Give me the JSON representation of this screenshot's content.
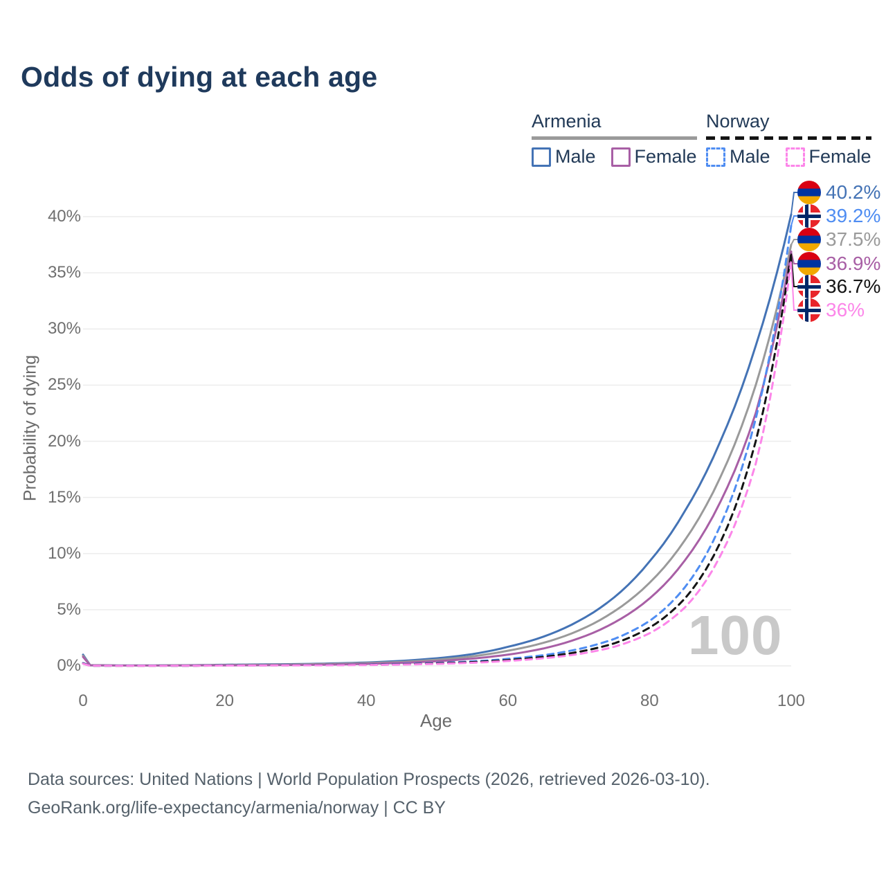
{
  "title": "Odds of dying at each age",
  "watermark": "100",
  "legend": {
    "armenia_label": "Armenia",
    "norway_label": "Norway",
    "male_label": "Male",
    "female_label": "Female"
  },
  "footer": {
    "line1": "Data sources: United Nations | World Population Prospects (2026, retrieved 2026-03-10).",
    "line2": "GeoRank.org/life-expectancy/armenia/norway | CC BY"
  },
  "colors": {
    "title_text": "#1f3a5c",
    "legend_text": "#223a57",
    "armenia_underline": "#9a9a9a",
    "norway_underline": "#141414",
    "grid": "#ececec",
    "axis_text": "#6f6f6f",
    "watermark": "#c9c9c9",
    "armenia_flag": [
      "#D90012",
      "#0033A0",
      "#F2A800"
    ],
    "norway_flag": [
      "#e8252a",
      "#ffffff",
      "#002868"
    ]
  },
  "chart_data": {
    "type": "line",
    "title": "Odds of dying at each age",
    "xlabel": "Age",
    "ylabel": "Probability of dying",
    "xlim": [
      0,
      100
    ],
    "ylim": [
      0,
      40
    ],
    "x_ticks": [
      0,
      20,
      40,
      60,
      80,
      100
    ],
    "y_ticks": [
      0,
      5,
      10,
      15,
      20,
      25,
      30,
      35,
      40
    ],
    "y_tick_labels": [
      "0%",
      "5%",
      "10%",
      "15%",
      "20%",
      "25%",
      "30%",
      "35%",
      "40%"
    ],
    "grid": true,
    "legend_position": "top-right",
    "ages": [
      0,
      1,
      5,
      10,
      15,
      20,
      25,
      30,
      35,
      40,
      45,
      50,
      55,
      60,
      65,
      70,
      75,
      80,
      85,
      90,
      95,
      100
    ],
    "series": [
      {
        "id": "armenia-male",
        "country": "Armenia",
        "sex": "Male",
        "style": "solid",
        "color": "#4473b5",
        "end_label": "40.2%",
        "values": [
          1.0,
          0.07,
          0.04,
          0.04,
          0.06,
          0.1,
          0.13,
          0.16,
          0.22,
          0.3,
          0.45,
          0.68,
          1.05,
          1.7,
          2.6,
          4.0,
          6.1,
          9.3,
          13.8,
          20.0,
          28.5,
          40.2
        ]
      },
      {
        "id": "armenia-total",
        "country": "Armenia",
        "sex": "Both",
        "style": "solid",
        "color": "#9a9a9a",
        "end_label": "37.5%",
        "values": [
          0.9,
          0.06,
          0.035,
          0.035,
          0.05,
          0.08,
          0.1,
          0.13,
          0.18,
          0.25,
          0.36,
          0.55,
          0.85,
          1.35,
          2.05,
          3.15,
          4.85,
          7.4,
          11.2,
          16.8,
          25.0,
          37.5
        ]
      },
      {
        "id": "armenia-female",
        "country": "Armenia",
        "sex": "Female",
        "style": "solid",
        "color": "#a85fa5",
        "end_label": "36.9%",
        "values": [
          0.8,
          0.05,
          0.03,
          0.03,
          0.04,
          0.05,
          0.06,
          0.08,
          0.12,
          0.18,
          0.27,
          0.42,
          0.65,
          1.0,
          1.55,
          2.45,
          3.85,
          6.0,
          9.4,
          14.6,
          22.5,
          36.9
        ]
      },
      {
        "id": "norway-male",
        "country": "Norway",
        "sex": "Male",
        "style": "dashed",
        "color": "#4f8df2",
        "end_label": "39.2%",
        "values": [
          0.25,
          0.02,
          0.01,
          0.01,
          0.02,
          0.05,
          0.06,
          0.07,
          0.09,
          0.12,
          0.17,
          0.26,
          0.4,
          0.63,
          0.95,
          1.5,
          2.4,
          4.0,
          7.0,
          12.5,
          22.0,
          39.2
        ]
      },
      {
        "id": "norway-total",
        "country": "Norway",
        "sex": "Both",
        "style": "dashed",
        "color": "#141414",
        "end_label": "36.7%",
        "values": [
          0.22,
          0.018,
          0.009,
          0.009,
          0.018,
          0.04,
          0.05,
          0.06,
          0.08,
          0.1,
          0.14,
          0.22,
          0.34,
          0.52,
          0.8,
          1.25,
          2.0,
          3.4,
          6.0,
          11.0,
          20.0,
          36.7
        ]
      },
      {
        "id": "norway-female",
        "country": "Norway",
        "sex": "Female",
        "style": "dashed",
        "color": "#fc86e9",
        "end_label": "36%",
        "values": [
          0.2,
          0.015,
          0.008,
          0.008,
          0.015,
          0.03,
          0.04,
          0.05,
          0.06,
          0.08,
          0.12,
          0.18,
          0.28,
          0.44,
          0.68,
          1.05,
          1.7,
          2.9,
          5.2,
          9.8,
          18.0,
          36.0
        ]
      }
    ]
  }
}
